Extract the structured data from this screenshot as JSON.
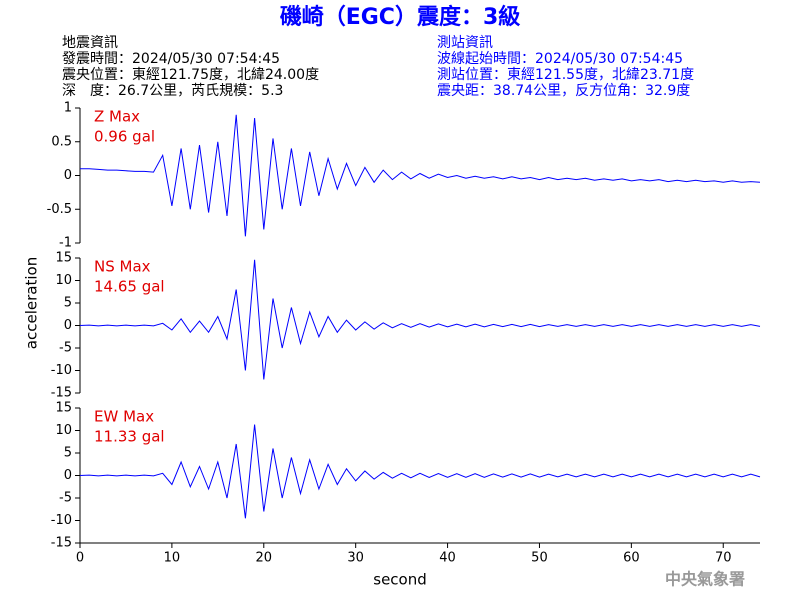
{
  "header": {
    "title": "磯崎（EGC）震度：3級",
    "left": [
      "地震資訊",
      "發震時間：2024/05/30 07:54:45",
      "震央位置：東經121.75度，北緯24.00度",
      "深　度：26.7公里，芮氏規模：5.3"
    ],
    "right": [
      "測站資訊",
      "波線起始時間：2024/05/30 07:54:45",
      "測站位置：東經121.55度，北緯23.71度",
      "震央距：38.74公里，反方位角：32.9度"
    ]
  },
  "chart_data": {
    "type": "line",
    "xlabel": "second",
    "ylabel": "acceleration",
    "watermark": "中央氣象署",
    "xlim": [
      0,
      74
    ],
    "xticks": [
      0,
      10,
      20,
      30,
      40,
      50,
      60,
      70
    ],
    "x": [
      0,
      1,
      2,
      3,
      4,
      5,
      6,
      7,
      8,
      9,
      10,
      11,
      12,
      13,
      14,
      15,
      16,
      17,
      18,
      19,
      20,
      21,
      22,
      23,
      24,
      25,
      26,
      27,
      28,
      29,
      30,
      31,
      32,
      33,
      34,
      35,
      36,
      37,
      38,
      39,
      40,
      41,
      42,
      43,
      44,
      45,
      46,
      47,
      48,
      49,
      50,
      51,
      52,
      53,
      54,
      55,
      56,
      57,
      58,
      59,
      60,
      61,
      62,
      63,
      64,
      65,
      66,
      67,
      68,
      69,
      70,
      71,
      72,
      73,
      74
    ],
    "panels": [
      {
        "label": "Z Max",
        "max_label": "0.96 gal",
        "ylim": [
          -1,
          1
        ],
        "yticks": [
          -1,
          -0.5,
          0,
          0.5,
          1
        ],
        "series": [
          {
            "color": "#0000ff",
            "values": [
              0.1,
              0.1,
              0.09,
              0.08,
              0.08,
              0.07,
              0.06,
              0.06,
              0.05,
              0.3,
              -0.45,
              0.4,
              -0.5,
              0.45,
              -0.55,
              0.5,
              -0.6,
              0.9,
              -0.9,
              0.85,
              -0.8,
              0.55,
              -0.5,
              0.4,
              -0.45,
              0.35,
              -0.3,
              0.25,
              -0.2,
              0.18,
              -0.15,
              0.12,
              -0.1,
              0.08,
              -0.06,
              0.05,
              -0.05,
              0.03,
              -0.04,
              0.02,
              -0.03,
              0.0,
              -0.04,
              -0.01,
              -0.04,
              -0.02,
              -0.05,
              -0.02,
              -0.05,
              -0.03,
              -0.06,
              -0.03,
              -0.06,
              -0.04,
              -0.06,
              -0.04,
              -0.07,
              -0.05,
              -0.07,
              -0.05,
              -0.08,
              -0.06,
              -0.08,
              -0.06,
              -0.09,
              -0.07,
              -0.09,
              -0.07,
              -0.09,
              -0.08,
              -0.1,
              -0.08,
              -0.1,
              -0.09,
              -0.1
            ]
          }
        ]
      },
      {
        "label": "NS Max",
        "max_label": "14.65 gal",
        "ylim": [
          -15,
          15
        ],
        "yticks": [
          -15,
          -10,
          -5,
          0,
          5,
          10,
          15
        ],
        "series": [
          {
            "color": "#0000ff",
            "values": [
              0,
              0.1,
              -0.1,
              0.1,
              -0.1,
              0.1,
              -0.1,
              0.1,
              -0.1,
              0.5,
              -1,
              1.5,
              -1.5,
              1,
              -1.5,
              2,
              -3,
              8,
              -10,
              14.6,
              -12,
              6,
              -5,
              4,
              -4,
              3,
              -2.5,
              2,
              -1.5,
              1.2,
              -1,
              0.8,
              -0.8,
              0.6,
              -0.5,
              0.4,
              -0.4,
              0.4,
              -0.35,
              0.35,
              -0.3,
              0.3,
              -0.3,
              0.3,
              -0.3,
              0.25,
              -0.25,
              0.25,
              -0.25,
              0.25,
              -0.25,
              0.2,
              -0.2,
              0.2,
              -0.2,
              0.2,
              -0.2,
              0.2,
              -0.2,
              0.2,
              -0.2,
              0.2,
              -0.2,
              0.2,
              -0.2,
              0.2,
              -0.2,
              0.2,
              -0.2,
              0.2,
              -0.2,
              0.2,
              -0.2,
              0.2,
              -0.2
            ]
          }
        ]
      },
      {
        "label": "EW Max",
        "max_label": "11.33 gal",
        "ylim": [
          -15,
          15
        ],
        "yticks": [
          -15,
          -10,
          -5,
          0,
          5,
          10,
          15
        ],
        "series": [
          {
            "color": "#0000ff",
            "values": [
              0,
              0.1,
              -0.1,
              0.1,
              -0.1,
              0.1,
              -0.1,
              0.1,
              -0.1,
              0.5,
              -2,
              3,
              -2.5,
              2,
              -3,
              3,
              -5,
              7,
              -9.5,
              11.3,
              -8,
              6,
              -5,
              4,
              -4,
              3.5,
              -3,
              2.5,
              -2,
              1.5,
              -1.2,
              1,
              -0.8,
              0.7,
              -0.6,
              0.5,
              -0.5,
              0.5,
              -0.45,
              0.45,
              -0.4,
              0.4,
              -0.4,
              0.4,
              -0.4,
              0.35,
              -0.35,
              0.35,
              -0.35,
              0.35,
              -0.35,
              0.3,
              -0.3,
              0.3,
              -0.3,
              0.3,
              -0.3,
              0.3,
              -0.3,
              0.3,
              -0.3,
              0.3,
              -0.3,
              0.3,
              -0.3,
              0.3,
              -0.3,
              0.3,
              -0.3,
              0.3,
              -0.3,
              0.3,
              -0.3,
              0.3,
              -0.3
            ]
          }
        ]
      }
    ]
  }
}
